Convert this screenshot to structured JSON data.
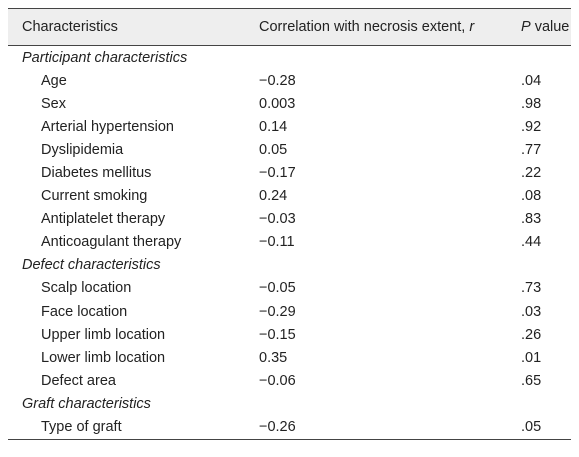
{
  "table": {
    "header": [
      {
        "text": "Characteristics"
      },
      {
        "before": "Correlation with necrosis extent, ",
        "italic": "r"
      },
      {
        "italic": "P",
        "after": " value"
      }
    ],
    "groups": [
      {
        "label": "Participant characteristics",
        "rows": [
          [
            "Age",
            "−0.28",
            ".04"
          ],
          [
            "Sex",
            "0.003",
            ".98"
          ],
          [
            "Arterial hypertension",
            "0.14",
            ".92"
          ],
          [
            "Dyslipidemia",
            "0.05",
            ".77"
          ],
          [
            "Diabetes mellitus",
            "−0.17",
            ".22"
          ],
          [
            "Current smoking",
            "0.24",
            ".08"
          ],
          [
            "Antiplatelet therapy",
            "−0.03",
            ".83"
          ],
          [
            "Anticoagulant therapy",
            "−0.11",
            ".44"
          ]
        ]
      },
      {
        "label": "Defect characteristics",
        "rows": [
          [
            "Scalp location",
            "−0.05",
            ".73"
          ],
          [
            "Face location",
            "−0.29",
            ".03"
          ],
          [
            "Upper limb location",
            "−0.15",
            ".26"
          ],
          [
            "Lower limb location",
            "0.35",
            ".01"
          ],
          [
            "Defect area",
            "−0.06",
            ".65"
          ]
        ]
      },
      {
        "label": "Graft characteristics",
        "rows": [
          [
            "Type of graft",
            "−0.26",
            ".05"
          ]
        ]
      }
    ]
  }
}
